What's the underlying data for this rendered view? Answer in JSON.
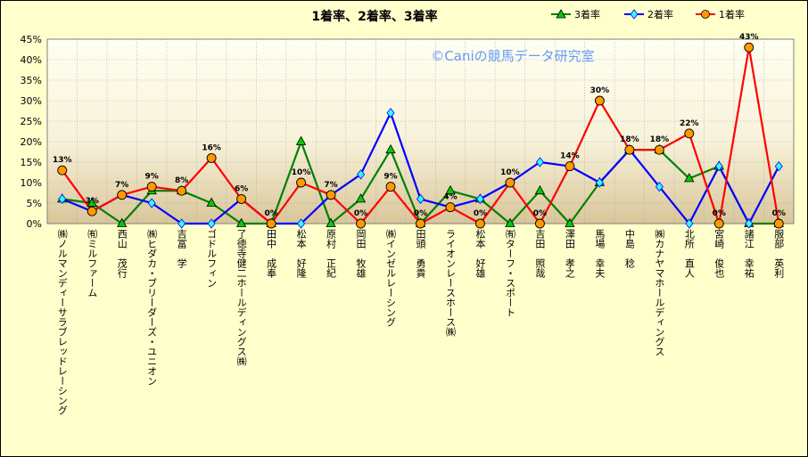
{
  "chart_data": {
    "type": "line",
    "title": "1着率、2着率、3着率",
    "watermark": "©Caniの競馬データ研究室",
    "ylim": [
      0,
      45
    ],
    "yticks": [
      "0%",
      "5%",
      "10%",
      "15%",
      "20%",
      "25%",
      "30%",
      "35%",
      "40%",
      "45%"
    ],
    "categories": [
      "㈱ノルマンディーサラブレッドレーシング",
      "㈲ミルファーム",
      "西山　茂行",
      "㈱ヒダカ・ブリーダーズ・ユニオン",
      "吉冨　学",
      "ゴドルフィン",
      "了徳寺健二ホールディングス㈱",
      "田中　成奉",
      "松本　好隆",
      "原村　正紀",
      "岡田　牧雄",
      "㈱インゼルレーシング",
      "田頭　勇貴",
      "ライオンレースホース㈱",
      "松本　好雄",
      "㈲ターフ・スポート",
      "吉田　照哉",
      "澤田　孝之",
      "馬場　幸夫",
      "中島　稔",
      "㈱カナヤマホールディングス",
      "北所　直人",
      "宮崎　俊也",
      "諸江　幸祐",
      "服部　英利"
    ],
    "series": [
      {
        "name": "3着率",
        "color": "#008000",
        "marker": "triangle",
        "marker_fill": "#00cc00",
        "values": [
          6,
          5,
          0,
          8,
          8,
          5,
          0,
          0,
          20,
          0,
          6,
          18,
          0,
          8,
          6,
          0,
          8,
          0,
          10,
          18,
          18,
          11,
          14,
          0,
          0
        ]
      },
      {
        "name": "2着率",
        "color": "#0000ff",
        "marker": "diamond",
        "marker_fill": "#33ffff",
        "values": [
          6,
          3,
          7,
          5,
          0,
          0,
          6,
          0,
          0,
          7,
          12,
          27,
          6,
          4,
          6,
          10,
          15,
          14,
          10,
          18,
          9,
          0,
          14,
          0,
          14
        ]
      },
      {
        "name": "1着率",
        "color": "#ff0000",
        "marker": "circle",
        "marker_fill": "#ff9900",
        "values": [
          13,
          3,
          7,
          9,
          8,
          16,
          6,
          0,
          10,
          7,
          0,
          9,
          0,
          4,
          0,
          10,
          0,
          14,
          30,
          18,
          18,
          22,
          0,
          43,
          0
        ]
      }
    ],
    "data_labels": [
      "13%",
      "3%",
      "7%",
      "9%",
      "8%",
      "16%",
      "6%",
      "0%",
      "10%",
      "7%",
      "0%",
      "9%",
      "0%",
      "4%",
      "0%",
      "10%",
      "0%",
      "14%",
      "30%",
      "18%",
      "18%",
      "22%",
      "0%",
      "43%",
      "0%"
    ],
    "legend_order": [
      "3着率",
      "2着率",
      "1着率"
    ]
  }
}
